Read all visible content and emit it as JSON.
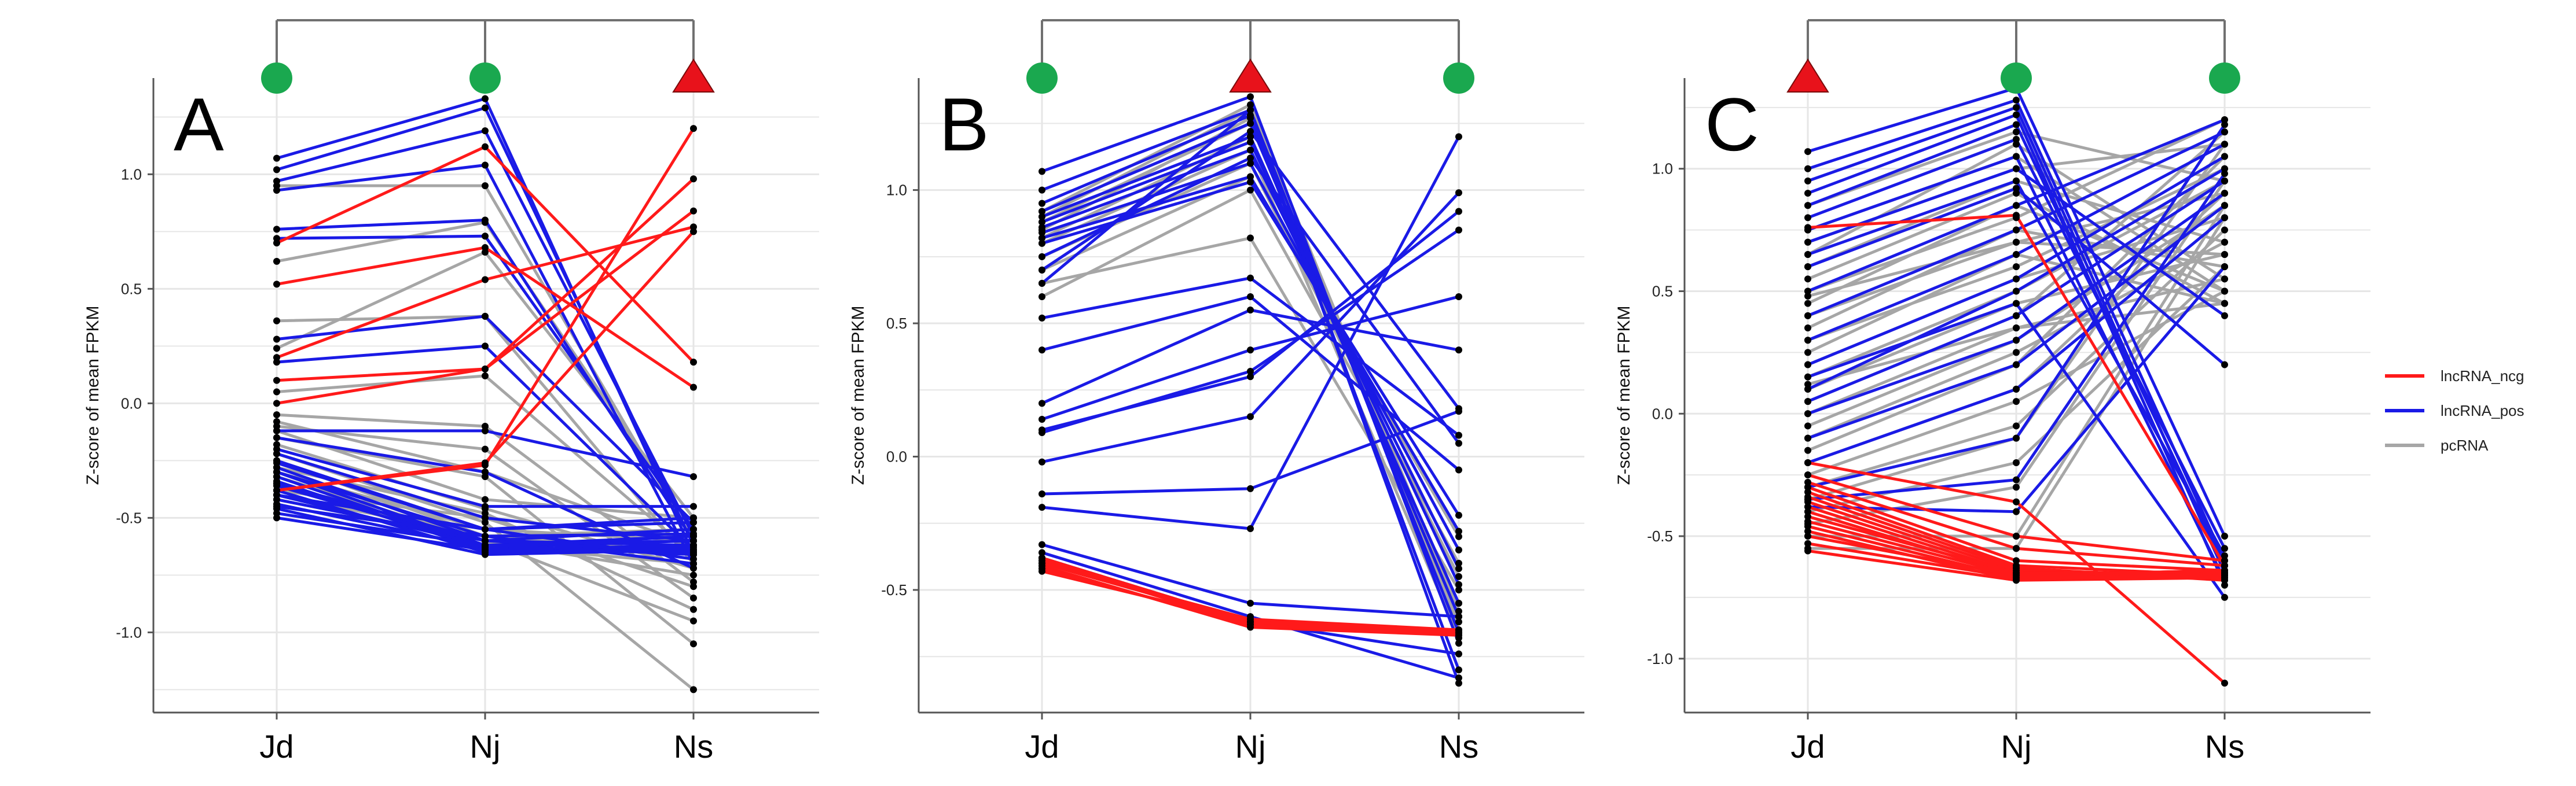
{
  "chart_data": [
    {
      "type": "line",
      "panel_label": "A",
      "categories": [
        "Jd",
        "Nj",
        "Ns"
      ],
      "ylabel": "Z-score of mean FPKM",
      "yticks": [
        "1.0",
        "0.5",
        "0.0",
        "-0.5",
        "-1.0"
      ],
      "ytick_values": [
        1.0,
        0.5,
        0.0,
        -0.5,
        -1.0
      ],
      "ylim": [
        -1.35,
        1.42
      ],
      "markers": [
        "circle",
        "circle",
        "triangle"
      ],
      "bracket_targets": [
        0,
        1,
        2
      ],
      "series": [
        {
          "class": "pcRNA",
          "values": [
            [
              0.62,
              0.79,
              -0.55
            ],
            [
              0.95,
              0.95,
              -0.6
            ],
            [
              0.36,
              0.38,
              -0.7
            ],
            [
              0.24,
              0.66,
              -0.5
            ],
            [
              -0.05,
              -0.1,
              -0.78
            ],
            [
              -0.1,
              -0.2,
              -0.85
            ],
            [
              -0.15,
              -0.32,
              -1.05
            ],
            [
              -0.18,
              -0.46,
              -0.72
            ],
            [
              -0.22,
              -0.52,
              -1.25
            ],
            [
              -0.25,
              -0.58,
              -0.65
            ],
            [
              -0.28,
              -0.48,
              -0.9
            ],
            [
              -0.3,
              -0.55,
              -0.6
            ],
            [
              -0.32,
              -0.6,
              -0.95
            ],
            [
              -0.35,
              -0.62,
              -0.7
            ],
            [
              -0.38,
              -0.5,
              -0.8
            ],
            [
              -0.4,
              -0.58,
              -0.55
            ],
            [
              -0.42,
              -0.6,
              -0.75
            ],
            [
              -0.08,
              -0.3,
              -0.62
            ],
            [
              -0.12,
              -0.42,
              -0.5
            ],
            [
              0.05,
              0.12,
              -0.66
            ]
          ]
        },
        {
          "class": "lncRNA_pos",
          "values": [
            [
              1.07,
              1.33,
              -0.66
            ],
            [
              1.02,
              1.29,
              -0.62
            ],
            [
              0.97,
              1.19,
              -0.58
            ],
            [
              0.93,
              1.04,
              -0.7
            ],
            [
              0.76,
              0.8,
              -0.6
            ],
            [
              0.72,
              0.73,
              -0.55
            ],
            [
              0.28,
              0.38,
              -0.52
            ],
            [
              0.18,
              0.25,
              -0.64
            ],
            [
              -0.12,
              -0.12,
              -0.32
            ],
            [
              -0.2,
              -0.45,
              -0.45
            ],
            [
              -0.25,
              -0.55,
              -0.5
            ],
            [
              -0.28,
              -0.6,
              -0.55
            ],
            [
              -0.3,
              -0.62,
              -0.58
            ],
            [
              -0.32,
              -0.63,
              -0.6
            ],
            [
              -0.34,
              -0.64,
              -0.62
            ],
            [
              -0.36,
              -0.62,
              -0.6
            ],
            [
              -0.38,
              -0.65,
              -0.63
            ],
            [
              -0.4,
              -0.62,
              -0.66
            ],
            [
              -0.42,
              -0.6,
              -0.62
            ],
            [
              -0.44,
              -0.63,
              -0.58
            ],
            [
              -0.46,
              -0.66,
              -0.64
            ],
            [
              -0.48,
              -0.62,
              -0.6
            ],
            [
              -0.5,
              -0.64,
              -0.62
            ],
            [
              -0.26,
              -0.55,
              -0.68
            ],
            [
              -0.3,
              -0.58,
              -0.7
            ],
            [
              -0.35,
              -0.6,
              -0.65
            ],
            [
              -0.4,
              -0.55,
              -0.52
            ],
            [
              -0.45,
              -0.58,
              -0.57
            ],
            [
              -0.15,
              -0.3,
              -0.72
            ],
            [
              -0.22,
              -0.5,
              -0.6
            ]
          ]
        },
        {
          "class": "lncRNA_ncg",
          "values": [
            [
              0.7,
              1.12,
              0.18
            ],
            [
              0.52,
              0.68,
              0.07
            ],
            [
              0.2,
              0.54,
              0.77
            ],
            [
              0.1,
              0.15,
              0.98
            ],
            [
              0.0,
              0.15,
              0.84
            ],
            [
              -0.38,
              -0.27,
              1.2
            ],
            [
              -0.38,
              -0.26,
              0.75
            ]
          ]
        }
      ]
    },
    {
      "type": "line",
      "panel_label": "B",
      "categories": [
        "Jd",
        "Nj",
        "Ns"
      ],
      "ylabel": "Z-score of mean FPKM",
      "yticks": [
        "1.0",
        "0.5",
        "0.0",
        "-0.5"
      ],
      "ytick_values": [
        1.0,
        0.5,
        0.0,
        -0.5
      ],
      "ylim": [
        -0.96,
        1.42
      ],
      "markers": [
        "circle",
        "triangle",
        "circle"
      ],
      "bracket_targets": [
        0,
        1,
        2
      ],
      "series": [
        {
          "class": "pcRNA",
          "values": [
            [
              0.65,
              0.82,
              -0.5
            ],
            [
              0.75,
              1.1,
              -0.45
            ],
            [
              0.82,
              1.2,
              -0.55
            ],
            [
              0.88,
              1.25,
              -0.6
            ],
            [
              0.7,
              1.05,
              -0.3
            ],
            [
              0.6,
              1.0,
              -0.4
            ],
            [
              0.9,
              1.3,
              -0.65
            ],
            [
              0.8,
              1.15,
              -0.68
            ],
            [
              0.85,
              1.27,
              -0.62
            ],
            [
              0.92,
              1.32,
              -0.58
            ]
          ]
        },
        {
          "class": "lncRNA_pos",
          "values": [
            [
              1.07,
              1.35,
              -0.7
            ],
            [
              1.0,
              1.3,
              -0.66
            ],
            [
              0.95,
              1.28,
              -0.8
            ],
            [
              0.92,
              1.25,
              -0.6
            ],
            [
              0.9,
              1.2,
              -0.55
            ],
            [
              0.88,
              1.18,
              -0.48
            ],
            [
              0.86,
              1.15,
              -0.42
            ],
            [
              0.84,
              1.1,
              -0.35
            ],
            [
              0.82,
              1.05,
              -0.28
            ],
            [
              0.8,
              1.03,
              -0.22
            ],
            [
              0.75,
              1.12,
              0.05
            ],
            [
              0.7,
              1.22,
              0.18
            ],
            [
              0.65,
              1.3,
              -0.85
            ],
            [
              0.52,
              0.67,
              0.08
            ],
            [
              0.4,
              0.6,
              -0.05
            ],
            [
              0.2,
              0.55,
              0.4
            ],
            [
              0.14,
              0.4,
              0.6
            ],
            [
              0.09,
              0.32,
              0.85
            ],
            [
              0.1,
              0.3,
              0.92
            ],
            [
              -0.02,
              0.15,
              0.99
            ],
            [
              -0.14,
              -0.12,
              0.17
            ],
            [
              -0.19,
              -0.27,
              1.2
            ],
            [
              -0.33,
              -0.55,
              -0.6
            ],
            [
              -0.36,
              -0.6,
              -0.83
            ],
            [
              -0.38,
              -0.62,
              -0.74
            ]
          ]
        },
        {
          "class": "lncRNA_ncg",
          "values": [
            [
              -0.39,
              -0.63,
              -0.66
            ],
            [
              -0.4,
              -0.62,
              -0.65
            ],
            [
              -0.41,
              -0.64,
              -0.67
            ],
            [
              -0.42,
              -0.63,
              -0.66
            ],
            [
              -0.43,
              -0.62,
              -0.67
            ],
            [
              -0.4,
              -0.61,
              -0.65
            ],
            [
              -0.38,
              -0.62,
              -0.66
            ]
          ]
        }
      ]
    },
    {
      "type": "line",
      "panel_label": "C",
      "categories": [
        "Jd",
        "Nj",
        "Ns"
      ],
      "ylabel": "Z-score of mean FPKM",
      "yticks": [
        "1.0",
        "0.5",
        "0.0",
        "-0.5",
        "-1.0"
      ],
      "ytick_values": [
        1.0,
        0.5,
        0.0,
        -0.5,
        -1.0
      ],
      "ylim": [
        -1.22,
        1.37
      ],
      "markers": [
        "triangle",
        "circle",
        "circle"
      ],
      "bracket_targets": [
        0,
        1,
        2
      ],
      "series": [
        {
          "class": "pcRNA",
          "values": [
            [
              0.85,
              1.15,
              0.95
            ],
            [
              0.7,
              1.0,
              1.1
            ],
            [
              0.6,
              0.95,
              0.7
            ],
            [
              0.5,
              0.8,
              1.2
            ],
            [
              0.45,
              0.85,
              0.5
            ],
            [
              0.4,
              0.7,
              0.9
            ],
            [
              0.35,
              0.75,
              0.6
            ],
            [
              0.3,
              0.6,
              1.0
            ],
            [
              0.25,
              0.65,
              0.45
            ],
            [
              0.2,
              0.55,
              0.8
            ],
            [
              0.15,
              0.5,
              0.95
            ],
            [
              0.1,
              0.45,
              0.65
            ],
            [
              0.05,
              0.4,
              1.15
            ],
            [
              0.0,
              0.35,
              0.55
            ],
            [
              -0.05,
              0.3,
              0.85
            ],
            [
              -0.1,
              0.25,
              0.7
            ],
            [
              -0.15,
              0.2,
              1.05
            ],
            [
              -0.2,
              0.1,
              0.9
            ],
            [
              -0.25,
              0.05,
              0.5
            ],
            [
              -0.3,
              -0.05,
              0.75
            ],
            [
              -0.35,
              -0.1,
              1.1
            ],
            [
              -0.4,
              -0.2,
              0.6
            ],
            [
              -0.45,
              -0.3,
              0.95
            ],
            [
              -0.5,
              -0.5,
              0.85
            ],
            [
              -0.55,
              -0.55,
              0.8
            ],
            [
              0.55,
              0.9,
              0.45
            ],
            [
              0.65,
              1.1,
              0.55
            ],
            [
              0.75,
              1.05,
              0.5
            ],
            [
              0.48,
              0.7,
              0.65
            ],
            [
              0.12,
              0.35,
              0.45
            ]
          ]
        },
        {
          "class": "lncRNA_pos",
          "values": [
            [
              1.07,
              1.33,
              -0.5
            ],
            [
              1.0,
              1.28,
              -0.6
            ],
            [
              0.95,
              1.25,
              -0.65
            ],
            [
              0.9,
              1.22,
              -0.7
            ],
            [
              0.85,
              1.18,
              -0.62
            ],
            [
              0.8,
              1.12,
              -0.55
            ],
            [
              0.75,
              1.05,
              -0.68
            ],
            [
              0.7,
              1.0,
              0.4
            ],
            [
              0.65,
              0.95,
              -0.58
            ],
            [
              0.6,
              0.92,
              0.2
            ],
            [
              0.5,
              0.85,
              1.2
            ],
            [
              0.4,
              0.75,
              1.15
            ],
            [
              0.3,
              0.65,
              1.1
            ],
            [
              0.2,
              0.55,
              1.05
            ],
            [
              0.1,
              0.5,
              1.0
            ],
            [
              0.05,
              0.4,
              0.95
            ],
            [
              0.0,
              0.3,
              0.9
            ],
            [
              -0.1,
              0.2,
              0.85
            ],
            [
              -0.2,
              0.1,
              0.8
            ],
            [
              -0.3,
              -0.1,
              1.18
            ],
            [
              -0.35,
              -0.27,
              0.98
            ],
            [
              -0.38,
              -0.4,
              0.6
            ],
            [
              0.15,
              0.45,
              -0.75
            ]
          ]
        },
        {
          "class": "lncRNA_ncg",
          "values": [
            [
              0.76,
              0.81,
              -0.62
            ],
            [
              -0.2,
              -0.36,
              -1.1
            ],
            [
              -0.25,
              -0.5,
              -0.6
            ],
            [
              -0.28,
              -0.55,
              -0.62
            ],
            [
              -0.3,
              -0.6,
              -0.64
            ],
            [
              -0.32,
              -0.62,
              -0.66
            ],
            [
              -0.34,
              -0.63,
              -0.68
            ],
            [
              -0.36,
              -0.64,
              -0.66
            ],
            [
              -0.38,
              -0.65,
              -0.65
            ],
            [
              -0.4,
              -0.66,
              -0.64
            ],
            [
              -0.42,
              -0.65,
              -0.66
            ],
            [
              -0.44,
              -0.66,
              -0.67
            ],
            [
              -0.46,
              -0.67,
              -0.66
            ],
            [
              -0.48,
              -0.68,
              -0.65
            ],
            [
              -0.5,
              -0.66,
              -0.64
            ],
            [
              -0.53,
              -0.67,
              -0.66
            ],
            [
              -0.56,
              -0.68,
              -0.67
            ]
          ]
        }
      ]
    }
  ],
  "legend": [
    {
      "label": "lncRNA_ncg",
      "color": "#ff1a1a"
    },
    {
      "label": "lncRNA_pos",
      "color": "#1a1ae6"
    },
    {
      "label": "pcRNA",
      "color": "#a6a6a6"
    }
  ],
  "colors": {
    "lncRNA_ncg": "#ff1a1a",
    "lncRNA_pos": "#1a1ae6",
    "pcRNA": "#a6a6a6",
    "marker_circle": "#1aa84f",
    "marker_triangle": "#e8121b",
    "grid": "#e6e6e6",
    "axis": "#555555",
    "bracket": "#707070"
  }
}
